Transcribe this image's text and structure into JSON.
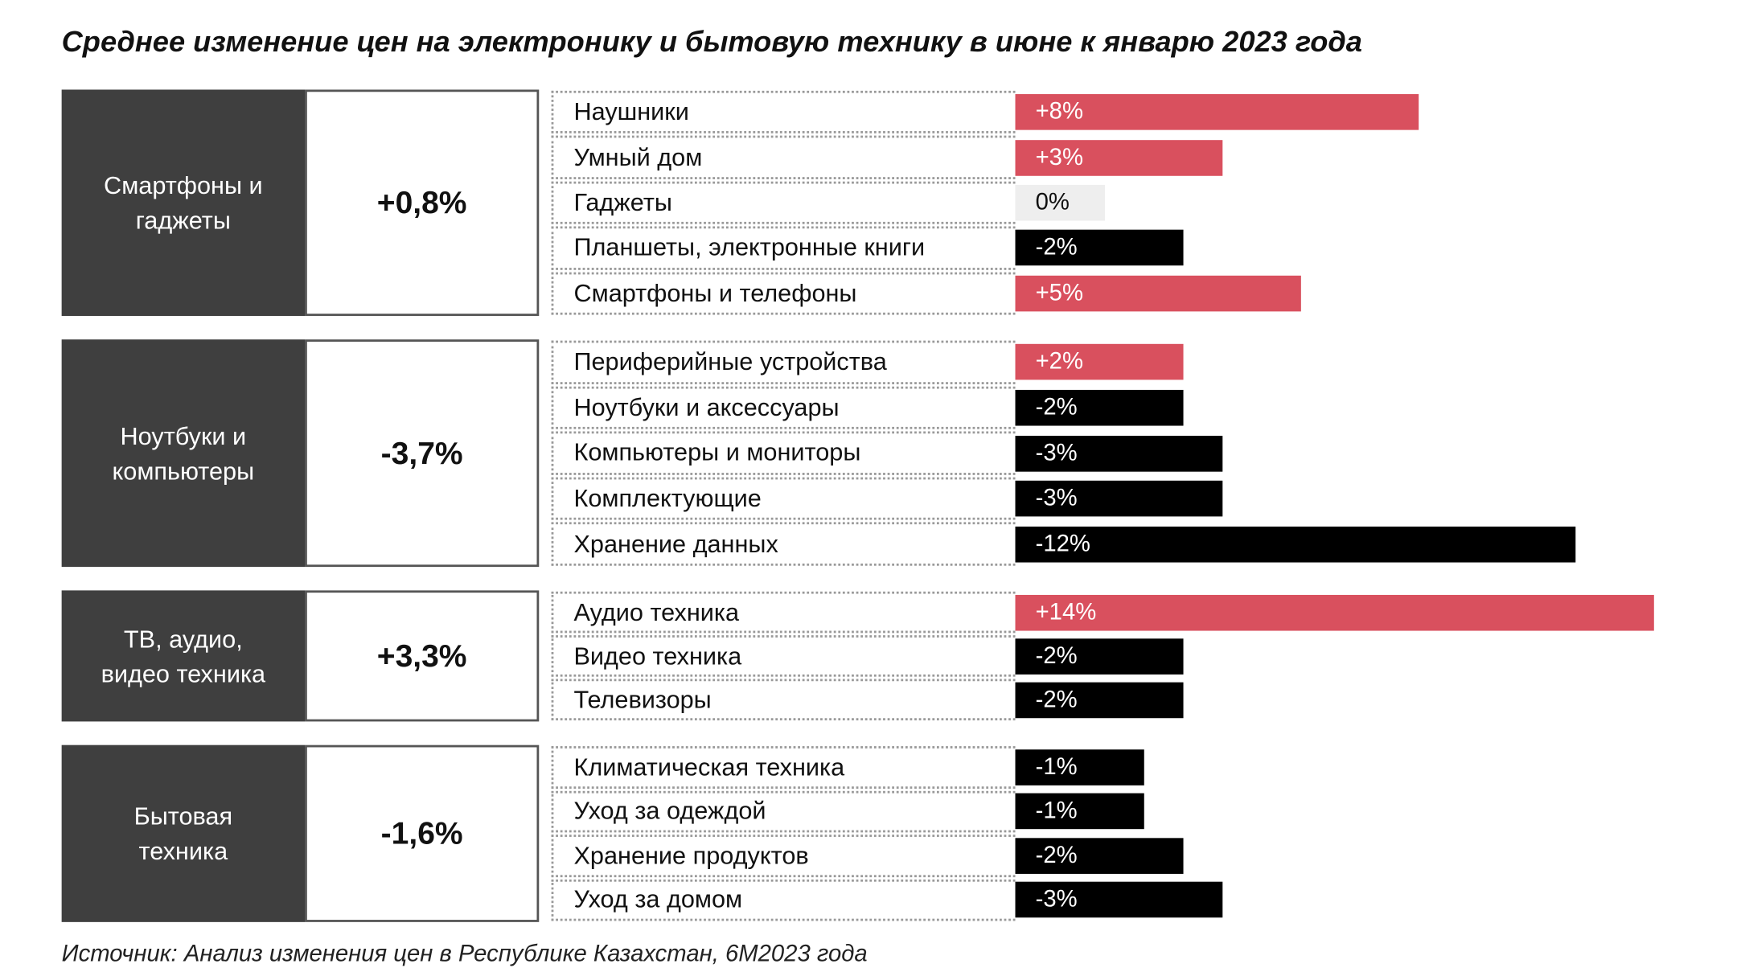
{
  "chart_data": {
    "type": "bar",
    "title": "Среднее изменение цен на электронику и бытовую технику в июне к январю 2023 года",
    "source": "Источник: Анализ изменения цен в Республике Казахстан, 6М2023 года",
    "positive_color": "#d9505e",
    "negative_color": "#000000",
    "zero_color": "#eeeeee",
    "groups": [
      {
        "name": "Смартфоны и гаджеты",
        "value": 0.8,
        "value_label": "+0,8%",
        "categories": [
          "Наушники",
          "Умный дом",
          "Гаджеты",
          "Планшеты, электронные книги",
          "Смартфоны и телефоны"
        ],
        "values": [
          8,
          3,
          0,
          -2,
          5
        ],
        "value_labels": [
          "+8%",
          "+3%",
          "0%",
          "-2%",
          "+5%"
        ]
      },
      {
        "name": "Ноутбуки и компьютеры",
        "value": -3.7,
        "value_label": "-3,7%",
        "categories": [
          "Периферийные устройства",
          "Ноутбуки и аксессуары",
          "Компьютеры и мониторы",
          "Комплектующие",
          "Хранение данных"
        ],
        "values": [
          2,
          -2,
          -3,
          -3,
          -12
        ],
        "value_labels": [
          "+2%",
          "-2%",
          "-3%",
          "-3%",
          "-12%"
        ]
      },
      {
        "name": "ТВ, аудио, видео техника",
        "value": 3.3,
        "value_label": "+3,3%",
        "categories": [
          "Аудио техника",
          "Видео техника",
          "Телевизоры"
        ],
        "values": [
          14,
          -2,
          -2
        ],
        "value_labels": [
          "+14%",
          "-2%",
          "-2%"
        ]
      },
      {
        "name": "Бытовая техника",
        "value": -1.6,
        "value_label": "-1,6%",
        "categories": [
          "Климатическая техника",
          "Уход за одеждой",
          "Хранение продуктов",
          "Уход за домом"
        ],
        "values": [
          -1,
          -1,
          -2,
          -3
        ],
        "value_labels": [
          "-1%",
          "-1%",
          "-2%",
          "-3%"
        ]
      }
    ]
  }
}
